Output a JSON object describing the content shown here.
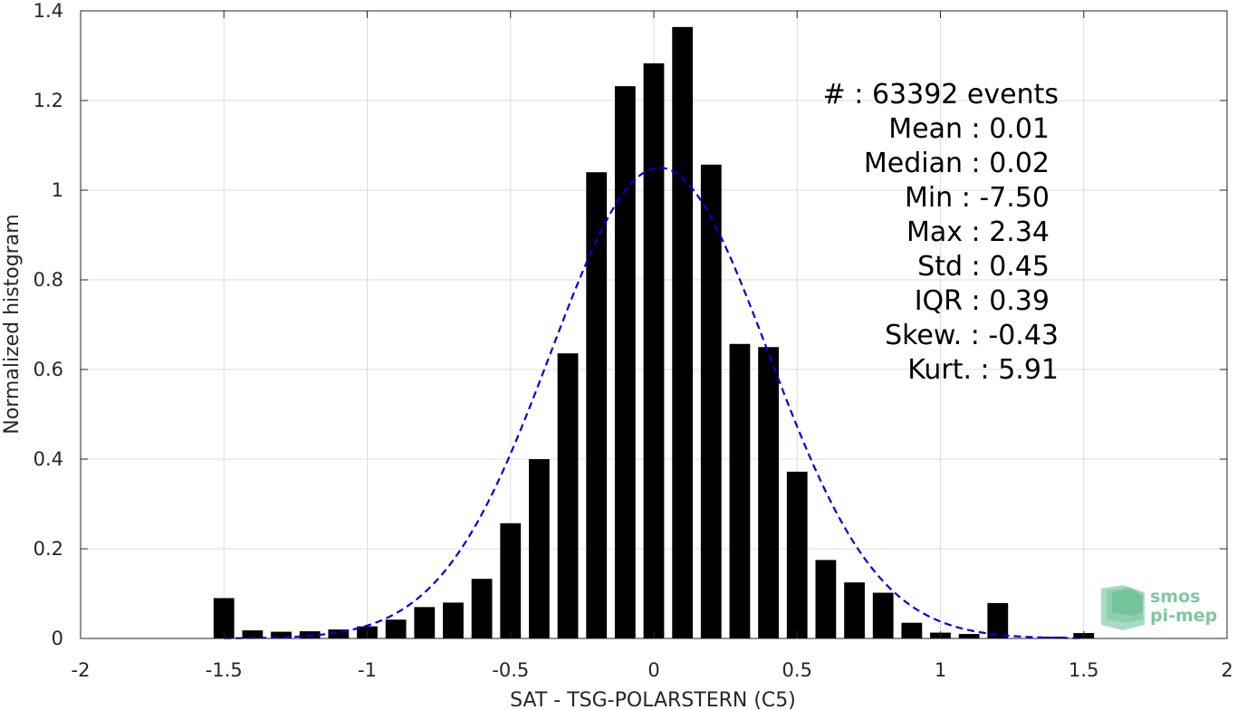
{
  "chart_data": {
    "type": "bar",
    "xlabel": "SAT - TSG-POLARSTERN (C5)",
    "ylabel": "Normalized histogram",
    "xlim": [
      -2,
      2
    ],
    "ylim": [
      0,
      1.4
    ],
    "grid": true,
    "x_ticks": [
      "-2",
      "-1.5",
      "-1",
      "-0.5",
      "0",
      "0.5",
      "1",
      "1.5",
      "2"
    ],
    "y_ticks": [
      "0",
      "0.2",
      "0.4",
      "0.6",
      "0.8",
      "1",
      "1.2",
      "1.4"
    ],
    "bar_color": "#000000",
    "bin_width": 0.1,
    "bins": [
      {
        "x": -1.5,
        "y": 0.09
      },
      {
        "x": -1.4,
        "y": 0.018
      },
      {
        "x": -1.3,
        "y": 0.015
      },
      {
        "x": -1.2,
        "y": 0.016
      },
      {
        "x": -1.1,
        "y": 0.02
      },
      {
        "x": -1.0,
        "y": 0.027
      },
      {
        "x": -0.9,
        "y": 0.042
      },
      {
        "x": -0.8,
        "y": 0.07
      },
      {
        "x": -0.7,
        "y": 0.08
      },
      {
        "x": -0.6,
        "y": 0.133
      },
      {
        "x": -0.5,
        "y": 0.257
      },
      {
        "x": -0.4,
        "y": 0.4
      },
      {
        "x": -0.3,
        "y": 0.636
      },
      {
        "x": -0.2,
        "y": 1.04
      },
      {
        "x": -0.1,
        "y": 1.232
      },
      {
        "x": 0.0,
        "y": 1.283
      },
      {
        "x": 0.1,
        "y": 1.364
      },
      {
        "x": 0.2,
        "y": 1.057
      },
      {
        "x": 0.3,
        "y": 0.657
      },
      {
        "x": 0.4,
        "y": 0.65
      },
      {
        "x": 0.5,
        "y": 0.372
      },
      {
        "x": 0.6,
        "y": 0.175
      },
      {
        "x": 0.7,
        "y": 0.125
      },
      {
        "x": 0.8,
        "y": 0.102
      },
      {
        "x": 0.9,
        "y": 0.035
      },
      {
        "x": 1.0,
        "y": 0.013
      },
      {
        "x": 1.1,
        "y": 0.01
      },
      {
        "x": 1.2,
        "y": 0.079
      },
      {
        "x": 1.3,
        "y": 0.0
      },
      {
        "x": 1.4,
        "y": 0.004
      },
      {
        "x": 1.5,
        "y": 0.012
      }
    ],
    "fit_curve": {
      "style": "dashed",
      "color": "#0000e0",
      "distribution": "gaussian",
      "mean": 0.02,
      "peak": 1.05,
      "sigma": 0.38,
      "x_range": [
        -1.5,
        1.5
      ]
    },
    "stats": [
      "#  : 63392 events",
      "Mean : 0.01",
      "Median : 0.02",
      "Min : -7.50",
      "Max : 2.34",
      "Std : 0.45",
      "IQR : 0.39",
      "Skew. : -0.43",
      "Kurt. : 5.91"
    ]
  },
  "logo": {
    "line1": "smos",
    "line2": "pi-mep",
    "color": "#7fc7a0"
  }
}
